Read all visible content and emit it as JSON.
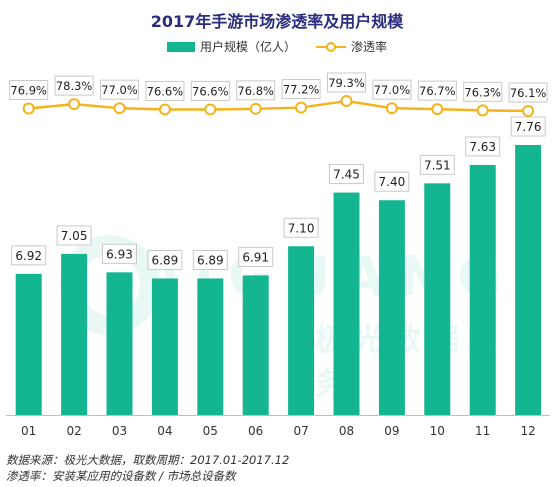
{
  "chart_data": {
    "type": "bar",
    "title": "2017年手游市场渗透率及用户规模",
    "categories": [
      "01",
      "02",
      "03",
      "04",
      "05",
      "06",
      "07",
      "08",
      "09",
      "10",
      "11",
      "12"
    ],
    "series": [
      {
        "name": "用户规模（亿人）",
        "type": "bar",
        "values": [
          6.92,
          7.05,
          6.93,
          6.89,
          6.89,
          6.91,
          7.1,
          7.45,
          7.4,
          7.51,
          7.63,
          7.76
        ],
        "labels": [
          "6.92",
          "7.05",
          "6.93",
          "6.89",
          "6.89",
          "6.91",
          "7.10",
          "7.45",
          "7.40",
          "7.51",
          "7.63",
          "7.76"
        ]
      },
      {
        "name": "渗透率",
        "type": "line",
        "values": [
          76.9,
          78.3,
          77.0,
          76.6,
          76.6,
          76.8,
          77.2,
          79.3,
          77.0,
          76.7,
          76.3,
          76.1
        ],
        "labels": [
          "76.9%",
          "78.3%",
          "77.0%",
          "76.6%",
          "76.6%",
          "76.8%",
          "77.2%",
          "79.3%",
          "77.0%",
          "76.7%",
          "76.3%",
          "76.1%"
        ]
      }
    ],
    "colors": {
      "bar": "#14b591",
      "line": "#f5b31b",
      "title": "#2b2d7e",
      "label_border": "#c9c9c9"
    },
    "legend_position": "top-center",
    "grid": false
  },
  "watermark": {
    "text": "JIGUANG",
    "subtext": "极光数据服务"
  },
  "footnotes": {
    "source": "数据来源：极光大数据，取数周期：2017.01-2017.12",
    "definition": "渗透率：安装某应用的设备数 / 市场总设备数"
  }
}
